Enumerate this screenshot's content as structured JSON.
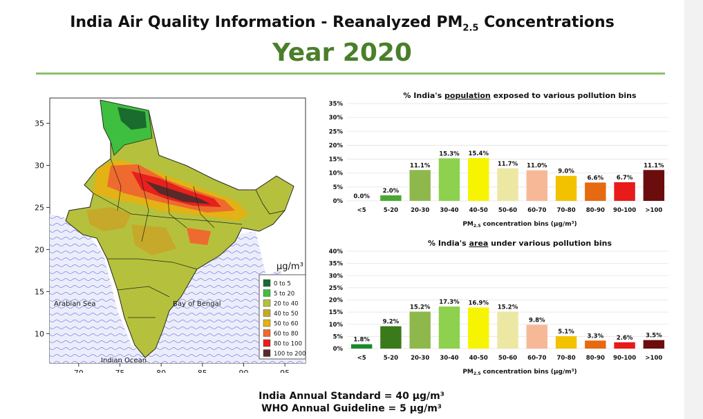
{
  "header": {
    "title_prefix": "India Air Quality Information - Reanalyzed PM",
    "title_sub": "2.5",
    "title_suffix": " Concentrations",
    "year": "Year 2020"
  },
  "map": {
    "x_ticks": [
      "70",
      "75",
      "80",
      "85",
      "90",
      "95"
    ],
    "y_ticks": [
      "35",
      "30",
      "25",
      "20",
      "15",
      "10"
    ],
    "labels": {
      "arabian_sea": "Arabian Sea",
      "bay_of_bengal": "Bay of Bengal",
      "indian_ocean": "Indian Ocean"
    },
    "legend_unit": "μg/m³",
    "legend": [
      {
        "label": "0 to 5",
        "color": "#1a6b2e"
      },
      {
        "label": "5 to 20",
        "color": "#3fbf3f"
      },
      {
        "label": "20 to 40",
        "color": "#b5c13c"
      },
      {
        "label": "40 to 50",
        "color": "#c6a82a"
      },
      {
        "label": "50 to 60",
        "color": "#e3b214"
      },
      {
        "label": "60 to 80",
        "color": "#ef6a2e"
      },
      {
        "label": "80 to 100",
        "color": "#e8201b"
      },
      {
        "label": "100 to 200",
        "color": "#5a2a2a"
      }
    ]
  },
  "chart_data": [
    {
      "type": "bar",
      "title_prefix": "% India's ",
      "title_emph": "population",
      "title_suffix": " exposed to various pollution bins",
      "categories": [
        "<5",
        "5-20",
        "20-30",
        "30-40",
        "40-50",
        "50-60",
        "60-70",
        "70-80",
        "80-90",
        "90-100",
        ">100"
      ],
      "values": [
        0.0,
        2.0,
        11.1,
        15.3,
        15.4,
        11.7,
        11.0,
        9.0,
        6.6,
        6.7,
        11.1
      ],
      "value_labels": [
        "0.0%",
        "2.0%",
        "11.1%",
        "15.3%",
        "15.4%",
        "11.7%",
        "11.0%",
        "9.0%",
        "6.6%",
        "6.7%",
        "11.1%"
      ],
      "y_ticks": [
        "0%",
        "5%",
        "10%",
        "15%",
        "20%",
        "25%",
        "30%",
        "35%"
      ],
      "ylim": [
        0,
        35
      ],
      "xlabel_prefix": "PM",
      "xlabel_sub": "2.5",
      "xlabel_suffix": " concentration bins (μg/m³)",
      "colors": [
        "#1a6b2e",
        "#4aa832",
        "#8fb84c",
        "#8dd14f",
        "#f6f400",
        "#ece7a3",
        "#f7b898",
        "#f2c200",
        "#e56a10",
        "#e81a1a",
        "#6b0d0d"
      ],
      "grid": true
    },
    {
      "type": "bar",
      "title_prefix": "% India's ",
      "title_emph": "area",
      "title_suffix": " under various pollution bins",
      "categories": [
        "<5",
        "5-20",
        "20-30",
        "30-40",
        "40-50",
        "50-60",
        "60-70",
        "70-80",
        "80-90",
        "90-100",
        ">100"
      ],
      "values": [
        1.8,
        9.2,
        15.2,
        17.3,
        16.9,
        15.2,
        9.8,
        5.1,
        3.3,
        2.6,
        3.5
      ],
      "value_labels": [
        "1.8%",
        "9.2%",
        "15.2%",
        "17.3%",
        "16.9%",
        "15.2%",
        "9.8%",
        "5.1%",
        "3.3%",
        "2.6%",
        "3.5%"
      ],
      "y_ticks": [
        "0%",
        "5%",
        "10%",
        "15%",
        "20%",
        "25%",
        "30%",
        "35%",
        "40%"
      ],
      "ylim": [
        0,
        40
      ],
      "xlabel_prefix": "PM",
      "xlabel_sub": "2.5",
      "xlabel_suffix": " concentration bins (μg/m³)",
      "colors": [
        "#1a8a2a",
        "#3a7a1a",
        "#8fb84c",
        "#8dd14f",
        "#f6f400",
        "#ece7a3",
        "#f7b898",
        "#f2c200",
        "#e56a10",
        "#e81a1a",
        "#6b0d0d"
      ],
      "grid": true
    }
  ],
  "footer": {
    "line1": "India Annual Standard = 40 μg/m³",
    "line2": "WHO Annual Guideline = 5 μg/m³"
  }
}
